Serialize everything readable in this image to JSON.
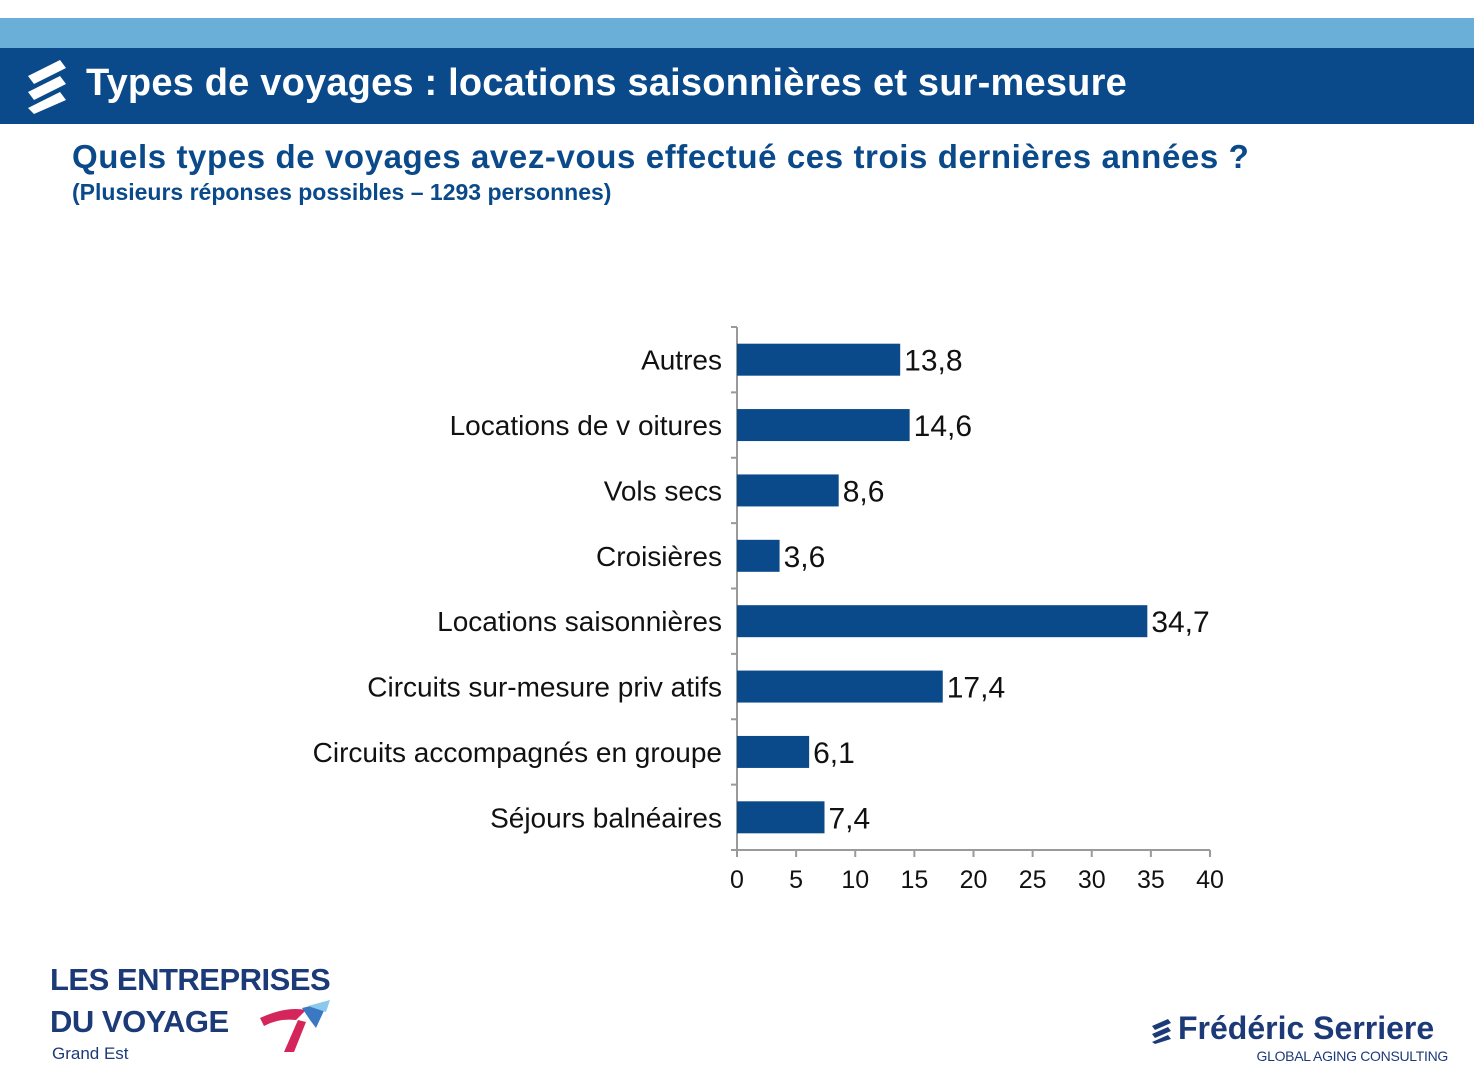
{
  "header": {
    "title": "Types de voyages : locations saisonnières et sur-mesure",
    "icon": "stripes-logo-icon"
  },
  "question": "Quels types de voyages avez-vous effectué ces trois dernières années  ?",
  "note": "(Plusieurs réponses possibles – 1293 personnes)",
  "colors": {
    "title_bar": "#0b4a8a",
    "top_strip": "#6aafd8",
    "bar": "#0b4a8a"
  },
  "chart_data": {
    "type": "bar",
    "orientation": "horizontal",
    "categories": [
      "Autres",
      "Locations de v oitures",
      "Vols secs",
      "Croisières",
      "Locations saisonnières",
      "Circuits sur-mesure priv atifs",
      "Circuits accompagnés en groupe",
      "Séjours balnéaires"
    ],
    "values": [
      13.8,
      14.6,
      8.6,
      3.6,
      34.7,
      17.4,
      6.1,
      7.4
    ],
    "value_labels": [
      "13,8",
      "14,6",
      "8,6",
      "3,6",
      "34,7",
      "17,4",
      "6,1",
      "7,4"
    ],
    "xlim": [
      0,
      40
    ],
    "xticks": [
      0,
      5,
      10,
      15,
      20,
      25,
      30,
      35,
      40
    ],
    "title": "",
    "xlabel": "",
    "ylabel": "",
    "grid": false
  },
  "footer": {
    "left_logo": {
      "line1": "LES ENTREPRISES",
      "line2": "DU VOYAGE",
      "line3": "Grand Est"
    },
    "right_logo": {
      "name": "Frédéric Serriere",
      "tagline": "GLOBAL AGING CONSULTING"
    }
  }
}
